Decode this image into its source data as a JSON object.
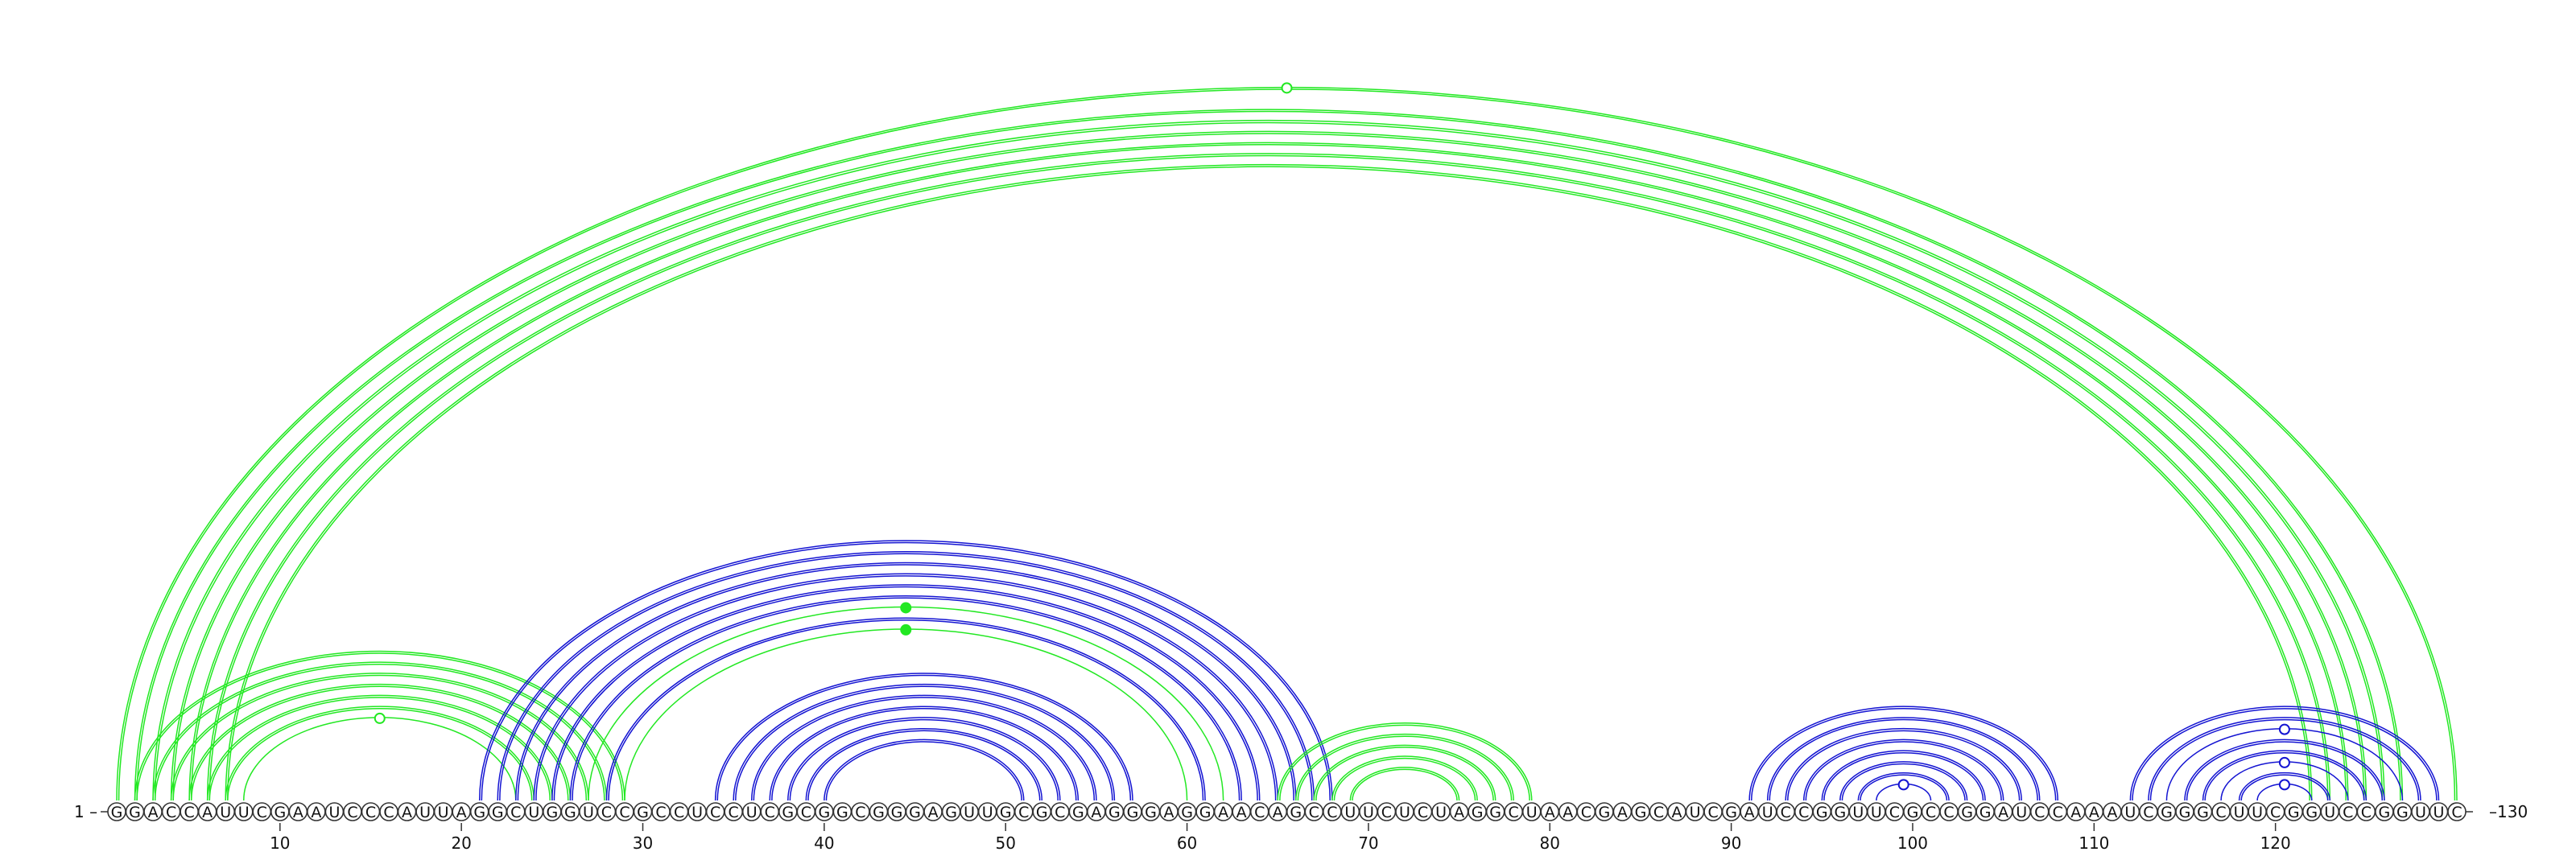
{
  "sequence": "GGACCAUUCGAAUCCCAUUAGGCUGGUCCGCCUCCUCGCGGCGGGAGUUGCGCGAGGGAGGAACAGCCUUCUCUAGGCUAACGAGCAUCGAUCCGGUUCGCCGGAUCCAAAUCGGGCUUCGGUCCGGUUC",
  "start_label": "1",
  "end_label": "130",
  "ticks": [
    "10",
    "20",
    "30",
    "40",
    "50",
    "60",
    "70",
    "80",
    "90",
    "100",
    "110",
    "120"
  ],
  "colors": {
    "green": "#22e822",
    "blue": "#1414d2"
  },
  "arcs": [
    {
      "i": 1,
      "j": 130,
      "color": "green",
      "lines": 2,
      "marker": "open"
    },
    {
      "i": 2,
      "j": 127,
      "color": "green",
      "lines": 2,
      "marker": "none"
    },
    {
      "i": 3,
      "j": 126,
      "color": "green",
      "lines": 2,
      "marker": "none"
    },
    {
      "i": 4,
      "j": 125,
      "color": "green",
      "lines": 2,
      "marker": "none"
    },
    {
      "i": 5,
      "j": 124,
      "color": "green",
      "lines": 2,
      "marker": "none"
    },
    {
      "i": 6,
      "j": 123,
      "color": "green",
      "lines": 2,
      "marker": "none"
    },
    {
      "i": 7,
      "j": 122,
      "color": "green",
      "lines": 2,
      "marker": "none"
    },
    {
      "i": 2,
      "j": 29,
      "color": "green",
      "lines": 2,
      "marker": "none"
    },
    {
      "i": 3,
      "j": 28,
      "color": "green",
      "lines": 2,
      "marker": "none"
    },
    {
      "i": 4,
      "j": 27,
      "color": "green",
      "lines": 2,
      "marker": "none"
    },
    {
      "i": 5,
      "j": 26,
      "color": "green",
      "lines": 2,
      "marker": "none"
    },
    {
      "i": 6,
      "j": 25,
      "color": "green",
      "lines": 2,
      "marker": "none"
    },
    {
      "i": 7,
      "j": 24,
      "color": "green",
      "lines": 2,
      "marker": "none"
    },
    {
      "i": 8,
      "j": 23,
      "color": "green",
      "lines": 1,
      "marker": "open"
    },
    {
      "i": 21,
      "j": 68,
      "color": "blue",
      "lines": 2,
      "marker": "none"
    },
    {
      "i": 22,
      "j": 67,
      "color": "blue",
      "lines": 2,
      "marker": "none"
    },
    {
      "i": 23,
      "j": 66,
      "color": "blue",
      "lines": 2,
      "marker": "none"
    },
    {
      "i": 24,
      "j": 65,
      "color": "blue",
      "lines": 2,
      "marker": "none"
    },
    {
      "i": 25,
      "j": 64,
      "color": "blue",
      "lines": 2,
      "marker": "none"
    },
    {
      "i": 26,
      "j": 63,
      "color": "blue",
      "lines": 2,
      "marker": "none"
    },
    {
      "i": 27,
      "j": 62,
      "color": "green",
      "lines": 1,
      "marker": "filled"
    },
    {
      "i": 28,
      "j": 61,
      "color": "blue",
      "lines": 2,
      "marker": "none"
    },
    {
      "i": 29,
      "j": 60,
      "color": "green",
      "lines": 1,
      "marker": "filled"
    },
    {
      "i": 34,
      "j": 57,
      "color": "blue",
      "lines": 2,
      "marker": "none"
    },
    {
      "i": 35,
      "j": 56,
      "color": "blue",
      "lines": 2,
      "marker": "none"
    },
    {
      "i": 36,
      "j": 55,
      "color": "blue",
      "lines": 2,
      "marker": "none"
    },
    {
      "i": 37,
      "j": 54,
      "color": "blue",
      "lines": 2,
      "marker": "none"
    },
    {
      "i": 38,
      "j": 53,
      "color": "blue",
      "lines": 2,
      "marker": "none"
    },
    {
      "i": 39,
      "j": 52,
      "color": "blue",
      "lines": 2,
      "marker": "none"
    },
    {
      "i": 40,
      "j": 51,
      "color": "blue",
      "lines": 2,
      "marker": "none"
    },
    {
      "i": 65,
      "j": 79,
      "color": "green",
      "lines": 2,
      "marker": "none"
    },
    {
      "i": 66,
      "j": 78,
      "color": "green",
      "lines": 2,
      "marker": "none"
    },
    {
      "i": 67,
      "j": 77,
      "color": "green",
      "lines": 2,
      "marker": "none"
    },
    {
      "i": 68,
      "j": 76,
      "color": "green",
      "lines": 2,
      "marker": "none"
    },
    {
      "i": 69,
      "j": 75,
      "color": "green",
      "lines": 2,
      "marker": "none"
    },
    {
      "i": 91,
      "j": 108,
      "color": "blue",
      "lines": 2,
      "marker": "none"
    },
    {
      "i": 92,
      "j": 107,
      "color": "blue",
      "lines": 2,
      "marker": "none"
    },
    {
      "i": 93,
      "j": 106,
      "color": "blue",
      "lines": 2,
      "marker": "none"
    },
    {
      "i": 94,
      "j": 105,
      "color": "blue",
      "lines": 2,
      "marker": "none"
    },
    {
      "i": 95,
      "j": 104,
      "color": "blue",
      "lines": 2,
      "marker": "none"
    },
    {
      "i": 96,
      "j": 103,
      "color": "blue",
      "lines": 2,
      "marker": "none"
    },
    {
      "i": 97,
      "j": 102,
      "color": "blue",
      "lines": 2,
      "marker": "none"
    },
    {
      "i": 98,
      "j": 101,
      "color": "blue",
      "lines": 1,
      "marker": "open"
    },
    {
      "i": 112,
      "j": 129,
      "color": "blue",
      "lines": 2,
      "marker": "none"
    },
    {
      "i": 113,
      "j": 128,
      "color": "blue",
      "lines": 2,
      "marker": "none"
    },
    {
      "i": 114,
      "j": 127,
      "color": "blue",
      "lines": 1,
      "marker": "open"
    },
    {
      "i": 115,
      "j": 126,
      "color": "blue",
      "lines": 2,
      "marker": "none"
    },
    {
      "i": 116,
      "j": 125,
      "color": "blue",
      "lines": 2,
      "marker": "none"
    },
    {
      "i": 117,
      "j": 124,
      "color": "blue",
      "lines": 1,
      "marker": "open"
    },
    {
      "i": 118,
      "j": 123,
      "color": "blue",
      "lines": 2,
      "marker": "none"
    },
    {
      "i": 119,
      "j": 122,
      "color": "blue",
      "lines": 1,
      "marker": "open"
    }
  ]
}
